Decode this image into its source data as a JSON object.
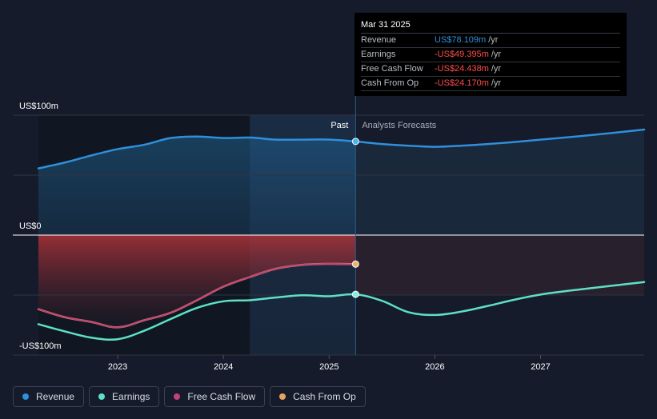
{
  "chart_data": {
    "type": "line",
    "title": "",
    "y_axis": {
      "min": -100,
      "max": 100,
      "labels": [
        {
          "value": 100,
          "text": "US$100m"
        },
        {
          "value": 0,
          "text": "US$0"
        },
        {
          "value": -100,
          "text": "-US$100m"
        }
      ]
    },
    "x_axis": {
      "min": 2022.25,
      "max": 2027.98,
      "ticks": [
        {
          "value": 2023,
          "text": "2023"
        },
        {
          "value": 2024,
          "text": "2024"
        },
        {
          "value": 2025,
          "text": "2025"
        },
        {
          "value": 2026,
          "text": "2026"
        },
        {
          "value": 2027,
          "text": "2027"
        }
      ]
    },
    "divider_x": 2025.25,
    "highlight_start_x": 2024.25,
    "past_label": "Past",
    "forecast_label": "Analysts Forecasts",
    "series": [
      {
        "name": "Revenue",
        "color": "#2f8fdc",
        "points": [
          [
            2022.25,
            55.6
          ],
          [
            2022.5,
            60.5
          ],
          [
            2022.75,
            66.4
          ],
          [
            2023.0,
            71.7
          ],
          [
            2023.25,
            75.3
          ],
          [
            2023.5,
            80.9
          ],
          [
            2023.75,
            82.2
          ],
          [
            2024.0,
            80.9
          ],
          [
            2024.25,
            81.3
          ],
          [
            2024.5,
            79.6
          ],
          [
            2024.75,
            79.6
          ],
          [
            2025.0,
            79.6
          ],
          [
            2025.25,
            78.1
          ],
          [
            2025.5,
            75.9
          ],
          [
            2025.75,
            74.5
          ],
          [
            2026.0,
            73.6
          ],
          [
            2026.25,
            74.5
          ],
          [
            2026.5,
            75.9
          ],
          [
            2026.75,
            77.6
          ],
          [
            2027.0,
            79.6
          ],
          [
            2027.25,
            81.5
          ],
          [
            2027.5,
            83.6
          ],
          [
            2027.75,
            85.8
          ],
          [
            2027.98,
            88.0
          ]
        ]
      },
      {
        "name": "Earnings",
        "color": "#5ee0c7",
        "points": [
          [
            2022.25,
            -74.3
          ],
          [
            2022.5,
            -80.3
          ],
          [
            2022.75,
            -85.5
          ],
          [
            2023.0,
            -86.8
          ],
          [
            2023.25,
            -79.8
          ],
          [
            2023.5,
            -70.0
          ],
          [
            2023.75,
            -60.7
          ],
          [
            2024.0,
            -55.2
          ],
          [
            2024.25,
            -54.3
          ],
          [
            2024.5,
            -52.0
          ],
          [
            2024.75,
            -50.2
          ],
          [
            2025.0,
            -51.0
          ],
          [
            2025.25,
            -49.4
          ],
          [
            2025.5,
            -54.8
          ],
          [
            2025.75,
            -64.3
          ],
          [
            2026.0,
            -66.6
          ],
          [
            2026.25,
            -63.8
          ],
          [
            2026.5,
            -59.1
          ],
          [
            2026.75,
            -53.9
          ],
          [
            2027.0,
            -49.6
          ],
          [
            2027.25,
            -46.6
          ],
          [
            2027.5,
            -44.0
          ],
          [
            2027.75,
            -41.5
          ],
          [
            2027.98,
            -39.2
          ]
        ]
      },
      {
        "name": "Free Cash Flow",
        "color": "#c4427a",
        "points": [
          [
            2022.25,
            -61.8
          ],
          [
            2022.5,
            -68.5
          ],
          [
            2022.75,
            -72.4
          ],
          [
            2023.0,
            -76.9
          ],
          [
            2023.25,
            -71.0
          ],
          [
            2023.5,
            -64.8
          ],
          [
            2023.75,
            -54.3
          ],
          [
            2024.0,
            -43.0
          ],
          [
            2024.25,
            -35.0
          ],
          [
            2024.5,
            -28.0
          ],
          [
            2024.75,
            -24.8
          ],
          [
            2025.0,
            -24.0
          ],
          [
            2025.25,
            -24.4
          ]
        ]
      },
      {
        "name": "Cash From Op",
        "color": "#e9a35f",
        "points": [
          [
            2022.25,
            -61.8
          ],
          [
            2022.5,
            -68.5
          ],
          [
            2022.75,
            -72.4
          ],
          [
            2023.0,
            -76.9
          ],
          [
            2023.25,
            -71.0
          ],
          [
            2023.5,
            -64.8
          ],
          [
            2023.75,
            -54.3
          ],
          [
            2024.0,
            -43.0
          ],
          [
            2024.25,
            -35.0
          ],
          [
            2024.5,
            -28.0
          ],
          [
            2024.75,
            -24.8
          ],
          [
            2025.0,
            -24.0
          ],
          [
            2025.25,
            -24.2
          ]
        ]
      }
    ]
  },
  "tooltip": {
    "date": "Mar 31 2025",
    "rows": [
      {
        "label": "Revenue",
        "value": "US$78.109m",
        "unit": "/yr",
        "color": "#2f8fdc"
      },
      {
        "label": "Earnings",
        "value": "-US$49.395m",
        "unit": "/yr",
        "color": "#ff4b4b"
      },
      {
        "label": "Free Cash Flow",
        "value": "-US$24.438m",
        "unit": "/yr",
        "color": "#ff4b4b"
      },
      {
        "label": "Cash From Op",
        "value": "-US$24.170m",
        "unit": "/yr",
        "color": "#ff4b4b"
      }
    ]
  },
  "legend": [
    {
      "label": "Revenue",
      "color": "#2f8fdc"
    },
    {
      "label": "Earnings",
      "color": "#5ee0c7"
    },
    {
      "label": "Free Cash Flow",
      "color": "#c4427a"
    },
    {
      "label": "Cash From Op",
      "color": "#e9a35f"
    }
  ]
}
